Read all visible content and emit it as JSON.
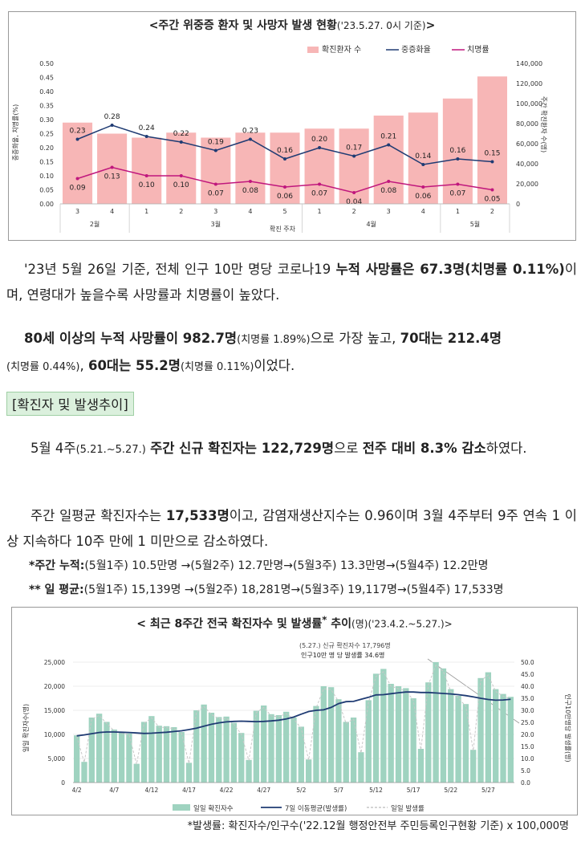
{
  "chart1": {
    "title": "<주간 위중증 환자 및 사망자 발생 현황",
    "title_sub": "('23.5.27. 0시 기준)",
    "title_end": ">",
    "legend": [
      "확진환자 수",
      "중증화율",
      "치명률"
    ],
    "left_axis_label": "중증화율, 치명률(%)",
    "right_axis_label": "주간 확진환자 수(명)",
    "x_axis_title": "확진 주차",
    "left_ticks": [
      "0.00",
      "0.05",
      "0.10",
      "0.15",
      "0.20",
      "0.25",
      "0.30",
      "0.35",
      "0.40",
      "0.45",
      "0.50"
    ],
    "right_ticks": [
      "0",
      "20,000",
      "40,000",
      "60,000",
      "80,000",
      "100,000",
      "120,000",
      "140,000"
    ],
    "weeks": [
      "3",
      "4",
      "1",
      "2",
      "3",
      "4",
      "5",
      "1",
      "2",
      "3",
      "4",
      "1",
      "2"
    ],
    "months": [
      "2월",
      "3월",
      "4월",
      "5월"
    ],
    "colors": {
      "bar": "#f7b6b6",
      "severe": "#1f3b73",
      "fatal": "#c0177d"
    }
  },
  "chart_data": [
    {
      "type": "bar+line",
      "title": "주간 위중증 환자 및 사망자 발생 현황",
      "categories": [
        "2월 3주",
        "2월 4주",
        "3월 1주",
        "3월 2주",
        "3월 3주",
        "3월 4주",
        "3월 5주",
        "4월 1주",
        "4월 2주",
        "4월 3주",
        "4월 4주",
        "5월 1주",
        "5월 2주"
      ],
      "series": [
        {
          "name": "확진환자 수",
          "axis": "right",
          "values": [
            81000,
            70000,
            66000,
            71000,
            66000,
            71000,
            71000,
            75000,
            75000,
            88000,
            91000,
            105000,
            127000
          ]
        },
        {
          "name": "중증화율",
          "axis": "left",
          "values": [
            0.23,
            0.28,
            0.24,
            0.22,
            0.19,
            0.23,
            0.16,
            0.2,
            0.17,
            0.21,
            0.14,
            0.16,
            0.15
          ],
          "labels": [
            "0.23",
            "0.28",
            "0.24",
            "0.22",
            "0.19",
            "0.23",
            "0.16",
            "0.20",
            "0.17",
            "0.21",
            "0.14",
            "0.16",
            "0.15"
          ]
        },
        {
          "name": "치명률",
          "axis": "left",
          "values": [
            0.09,
            0.13,
            0.1,
            0.1,
            0.07,
            0.08,
            0.06,
            0.07,
            0.04,
            0.08,
            0.06,
            0.07,
            0.05
          ],
          "labels": [
            "0.09",
            "0.13",
            "0.10",
            "0.10",
            "0.07",
            "0.08",
            "0.06",
            "0.07",
            "0.04",
            "0.08",
            "0.06",
            "0.07",
            "0.05"
          ]
        }
      ],
      "ylim_left": [
        0,
        0.5
      ],
      "ylim_right": [
        0,
        140000
      ],
      "xlabel": "확진 주차"
    },
    {
      "type": "bar+line",
      "title": "최근 8주간 전국 확진자수 및 발생률 추이",
      "x_tick_labels": [
        "4/2",
        "4/7",
        "4/12",
        "4/17",
        "4/22",
        "4/27",
        "5/2",
        "5/7",
        "5/12",
        "5/17",
        "5/22",
        "5/27"
      ],
      "series": [
        {
          "name": "일일 확진자수",
          "axis": "left",
          "values": [
            9800,
            4300,
            13500,
            14300,
            12600,
            11000,
            10500,
            10200,
            3900,
            12600,
            13800,
            11800,
            11700,
            11500,
            10500,
            4100,
            15000,
            16200,
            14500,
            13600,
            13700,
            12400,
            10300,
            4700,
            14900,
            16000,
            14200,
            14000,
            14700,
            13500,
            11600,
            4800,
            15900,
            20000,
            19800,
            17300,
            12600,
            13500,
            6300,
            17100,
            22600,
            23600,
            20500,
            20000,
            19600,
            17500,
            7000,
            20800,
            25000,
            23700,
            19400,
            18000,
            16300,
            6800,
            21700,
            22900,
            19400,
            18400,
            17800
          ],
          "note": "daily values approximated"
        },
        {
          "name": "7일 이동평균(발생률)",
          "axis": "right",
          "values": [
            19.4,
            19.8,
            20.3,
            20.8,
            21.0,
            21.0,
            20.9,
            20.8,
            20.6,
            20.4,
            20.5,
            20.7,
            20.9,
            21.2,
            21.5,
            22.0,
            22.6,
            23.4,
            24.2,
            24.8,
            25.2,
            25.4,
            25.5,
            25.4,
            25.3,
            25.4,
            25.6,
            25.9,
            26.4,
            27.2,
            28.4,
            29.5,
            30.0,
            30.2,
            31.2,
            32.8,
            33.6,
            33.7,
            34.6,
            35.4,
            36.4,
            36.5,
            36.9,
            37.3,
            37.6,
            37.6,
            37.4,
            37.4,
            37.2,
            37.0,
            36.8,
            36.5,
            36.1,
            35.6,
            35.0,
            34.5,
            34.2,
            34.3,
            34.6
          ]
        },
        {
          "name": "일일 발생률",
          "axis": "right",
          "style": "dashed"
        }
      ],
      "ylim_left": [
        0,
        25000
      ],
      "ylim_right": [
        0,
        50
      ],
      "annotation": "(5.27.) 신규 확진자수 17,796명 / 인구10만 명 당 발생률 34.6명"
    }
  ],
  "para1": {
    "t1": "'23년 5월 26일 기준, 전체 인구 10만 명당 코로나19 ",
    "b1": "누적 사망률은 67.3명(치명률 0.11%)",
    "t2": "이며, 연령대가 높을수록 사망률과 치명률이 높았다."
  },
  "para2": {
    "b1": "80세 이상의 누적 사망률이 982.7명",
    "s1": "(치명률 1.89%)",
    "t1": "으로 가장 높고, ",
    "b2": "70대는 212.4명",
    "s2": "(치명률 0.44%)",
    "t2": ", ",
    "b3": "60대는 55.2명",
    "s3": "(치명률 0.11%)",
    "t3": "이었다."
  },
  "section_tag": "[확진자 및 발생추이]",
  "para3": {
    "t1": "5월 4주",
    "s1": "(5.21.~5.27.)",
    "b1": "주간 신규 확진자는 122,729명",
    "t2": "으로 ",
    "b2": "전주 대비 8.3% 감소",
    "t3": "하였다."
  },
  "para4": {
    "t1": "주간 일평균 확진자수는 ",
    "b1": "17,533명",
    "t2": "이고, 감염재생산지수는 0.96이며 3월 4주부터 9주 연속 1 이상 지속하다 10주 만에 1 미만으로 감소하였다."
  },
  "note1": {
    "label": "*주간 누적:",
    "text": "(5월1주) 10.5만명 →(5월2주) 12.7만명→(5월3주) 13.3만명→(5월4주) 12.2만명"
  },
  "note2": {
    "label": "** 일 평균:",
    "text": "(5월1주) 15,139명 →(5월2주) 18,281명→(5월3주) 19,117명→(5월4주) 17,533명"
  },
  "chart2": {
    "title": "< 최근 8주간 전국 확진자수 및 발생률",
    "title_sup": "*",
    "title_mid": " 추이",
    "title_sub": "(명)('23.4.2.~5.27.)>",
    "left_ticks": [
      "0",
      "5,000",
      "10,000",
      "15,000",
      "20,000",
      "25,000"
    ],
    "right_ticks": [
      "0.0",
      "5.0",
      "10.0",
      "15.0",
      "20.0",
      "25.0",
      "30.0",
      "35.0",
      "40.0",
      "45.0",
      "50.0"
    ],
    "left_axis_label": "일일 확진자수(명)",
    "right_axis_label": "인구10만명당 발생률(명)",
    "legend": [
      "일일 확진자수",
      "7일 이동평균(발생률)",
      "일일 발생률"
    ],
    "annotation_line1": "(5.27.) 신규 확진자수 17,796명",
    "annotation_line2": "인구10만 명 당 발생률 34.6명",
    "colors": {
      "bar": "#9fd3c0",
      "avg": "#1f3b73",
      "daily": "#c8c8c8"
    }
  },
  "footnote": "*발생률: 확진자수/인구수('22.12월 행정안전부 주민등록인구현황 기준) x 100,000명"
}
